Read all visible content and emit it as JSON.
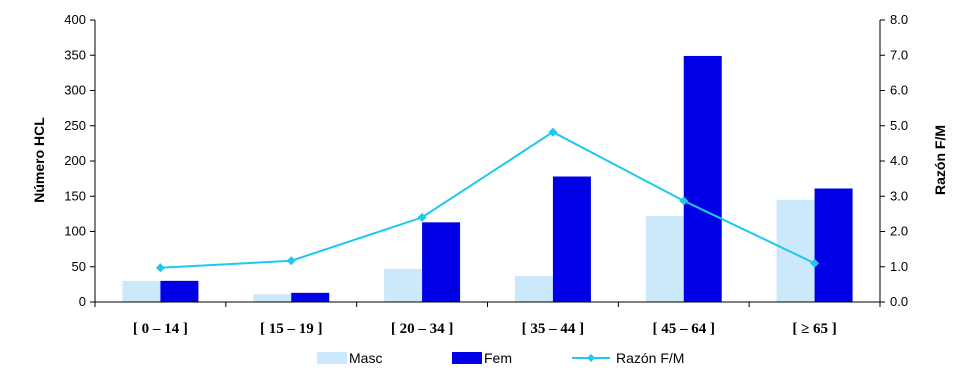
{
  "chart_data": {
    "type": "bar",
    "categories": [
      "[ 0 – 14 ]",
      "[ 15  – 19 ]",
      "[ 20  – 34 ]",
      "[ 35  – 44 ]",
      "[ 45  – 64 ]",
      "[ ≥ 65 ]"
    ],
    "series": [
      {
        "name": "Masc",
        "type": "bar",
        "axis": "left",
        "color": "#cce8fb",
        "values": [
          30,
          11,
          47,
          37,
          122,
          145
        ]
      },
      {
        "name": "Fem",
        "type": "bar",
        "axis": "left",
        "color": "#0000e6",
        "values": [
          30,
          13,
          113,
          178,
          349,
          161
        ]
      },
      {
        "name": "Razón F/M",
        "type": "line",
        "axis": "right",
        "color": "#1ec8f0",
        "marker": "diamond",
        "values": [
          0.97,
          1.17,
          2.4,
          4.82,
          2.87,
          1.1
        ]
      }
    ],
    "ylabel": "Número HCL",
    "y2label": "Razón F/M",
    "ylim": [
      0,
      400
    ],
    "y2lim": [
      0,
      8
    ],
    "yticks": [
      "0",
      "50",
      "100",
      "150",
      "200",
      "250",
      "300",
      "350",
      "400"
    ],
    "y2ticks": [
      "0.0",
      "1.0",
      "2.0",
      "3.0",
      "4.0",
      "5.0",
      "6.0",
      "7.0",
      "8.0"
    ],
    "grid": false,
    "legend": "bottom"
  }
}
